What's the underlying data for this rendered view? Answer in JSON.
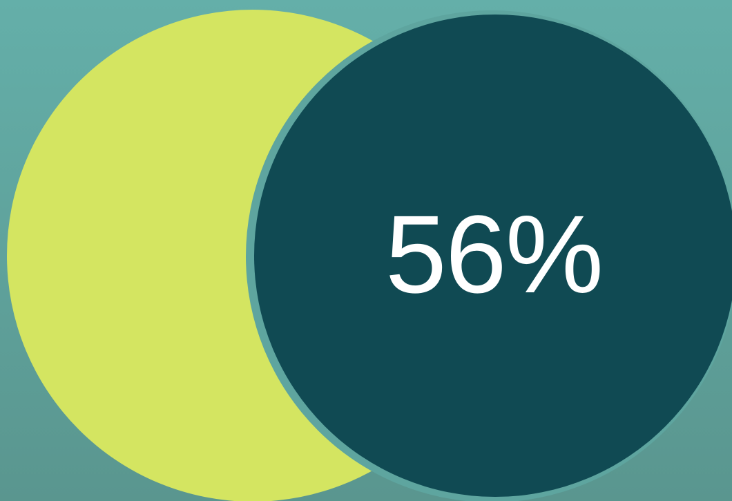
{
  "stat": {
    "value": "56%"
  },
  "colors": {
    "background_top": "#64afa9",
    "background_bottom": "#5a968f",
    "back_circle": "#d4e561",
    "front_circle": "#104a53",
    "text": "#ffffff"
  }
}
